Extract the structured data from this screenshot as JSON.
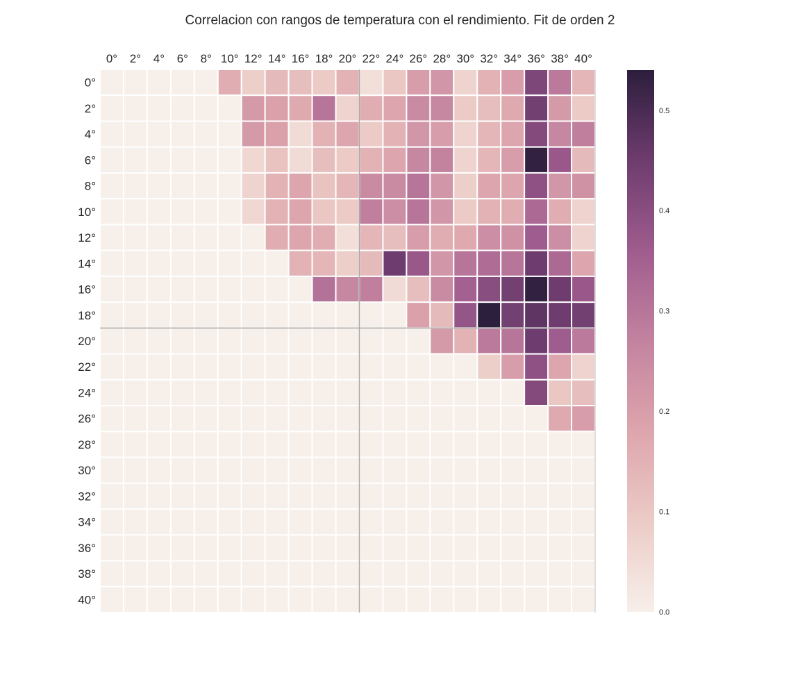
{
  "chart_data": {
    "type": "heatmap",
    "title": "Correlacion con rangos de temperatura con el rendimiento. Fit de orden 2",
    "x_labels": [
      "0°",
      "2°",
      "4°",
      "6°",
      "8°",
      "10°",
      "12°",
      "14°",
      "16°",
      "18°",
      "20°",
      "22°",
      "24°",
      "26°",
      "28°",
      "30°",
      "32°",
      "34°",
      "36°",
      "38°",
      "40°"
    ],
    "y_labels": [
      "0°",
      "2°",
      "4°",
      "6°",
      "8°",
      "10°",
      "12°",
      "14°",
      "16°",
      "18°",
      "20°",
      "22°",
      "24°",
      "26°",
      "28°",
      "30°",
      "32°",
      "34°",
      "36°",
      "38°",
      "40°"
    ],
    "values": [
      [
        0,
        0,
        0,
        0,
        0,
        0.16,
        0.08,
        0.13,
        0.12,
        0.09,
        0.15,
        0.04,
        0.1,
        0.2,
        0.22,
        0.07,
        0.15,
        0.2,
        0.42,
        0.29,
        0.14
      ],
      [
        0,
        0,
        0,
        0,
        0,
        0,
        0.21,
        0.19,
        0.17,
        0.3,
        0.07,
        0.16,
        0.18,
        0.25,
        0.26,
        0.09,
        0.12,
        0.17,
        0.44,
        0.21,
        0.09
      ],
      [
        0,
        0,
        0,
        0,
        0,
        0,
        0.21,
        0.19,
        0.05,
        0.15,
        0.18,
        0.09,
        0.15,
        0.22,
        0.2,
        0.07,
        0.14,
        0.18,
        0.41,
        0.26,
        0.28
      ],
      [
        0,
        0,
        0,
        0,
        0,
        0,
        0.06,
        0.11,
        0.05,
        0.12,
        0.09,
        0.15,
        0.18,
        0.26,
        0.27,
        0.07,
        0.14,
        0.2,
        0.53,
        0.37,
        0.13
      ],
      [
        0,
        0,
        0,
        0,
        0,
        0,
        0.07,
        0.15,
        0.18,
        0.11,
        0.14,
        0.25,
        0.25,
        0.3,
        0.22,
        0.08,
        0.18,
        0.18,
        0.39,
        0.22,
        0.23
      ],
      [
        0,
        0,
        0,
        0,
        0,
        0,
        0.06,
        0.15,
        0.18,
        0.1,
        0.09,
        0.28,
        0.24,
        0.3,
        0.22,
        0.09,
        0.15,
        0.16,
        0.33,
        0.16,
        0.07
      ],
      [
        0,
        0,
        0,
        0,
        0,
        0,
        0,
        0.16,
        0.18,
        0.16,
        0.04,
        0.14,
        0.12,
        0.2,
        0.16,
        0.17,
        0.24,
        0.23,
        0.36,
        0.24,
        0.07
      ],
      [
        0,
        0,
        0,
        0,
        0,
        0,
        0,
        0,
        0.15,
        0.14,
        0.08,
        0.13,
        0.45,
        0.37,
        0.22,
        0.3,
        0.32,
        0.3,
        0.45,
        0.33,
        0.18
      ],
      [
        0,
        0,
        0,
        0,
        0,
        0,
        0,
        0,
        0,
        0.31,
        0.26,
        0.28,
        0.05,
        0.12,
        0.25,
        0.35,
        0.4,
        0.44,
        0.53,
        0.45,
        0.37
      ],
      [
        0,
        0,
        0,
        0,
        0,
        0,
        0,
        0,
        0,
        0,
        0,
        0,
        0,
        0.19,
        0.13,
        0.38,
        0.54,
        0.44,
        0.47,
        0.45,
        0.44
      ],
      [
        0,
        0,
        0,
        0,
        0,
        0,
        0,
        0,
        0,
        0,
        0,
        0,
        0,
        0,
        0.21,
        0.15,
        0.29,
        0.3,
        0.45,
        0.36,
        0.29
      ],
      [
        0,
        0,
        0,
        0,
        0,
        0,
        0,
        0,
        0,
        0,
        0,
        0,
        0,
        0,
        0,
        0,
        0.08,
        0.2,
        0.39,
        0.18,
        0.07
      ],
      [
        0,
        0,
        0,
        0,
        0,
        0,
        0,
        0,
        0,
        0,
        0,
        0,
        0,
        0,
        0,
        0,
        0,
        0,
        0.41,
        0.1,
        0.12
      ],
      [
        0,
        0,
        0,
        0,
        0,
        0,
        0,
        0,
        0,
        0,
        0,
        0,
        0,
        0,
        0,
        0,
        0,
        0,
        0,
        0.17,
        0.2
      ],
      [
        0,
        0,
        0,
        0,
        0,
        0,
        0,
        0,
        0,
        0,
        0,
        0,
        0,
        0,
        0,
        0,
        0,
        0,
        0,
        0,
        0
      ],
      [
        0,
        0,
        0,
        0,
        0,
        0,
        0,
        0,
        0,
        0,
        0,
        0,
        0,
        0,
        0,
        0,
        0,
        0,
        0,
        0,
        0
      ],
      [
        0,
        0,
        0,
        0,
        0,
        0,
        0,
        0,
        0,
        0,
        0,
        0,
        0,
        0,
        0,
        0,
        0,
        0,
        0,
        0,
        0
      ],
      [
        0,
        0,
        0,
        0,
        0,
        0,
        0,
        0,
        0,
        0,
        0,
        0,
        0,
        0,
        0,
        0,
        0,
        0,
        0,
        0,
        0
      ],
      [
        0,
        0,
        0,
        0,
        0,
        0,
        0,
        0,
        0,
        0,
        0,
        0,
        0,
        0,
        0,
        0,
        0,
        0,
        0,
        0,
        0
      ],
      [
        0,
        0,
        0,
        0,
        0,
        0,
        0,
        0,
        0,
        0,
        0,
        0,
        0,
        0,
        0,
        0,
        0,
        0,
        0,
        0,
        0
      ],
      [
        0,
        0,
        0,
        0,
        0,
        0,
        0,
        0,
        0,
        0,
        0,
        0,
        0,
        0,
        0,
        0,
        0,
        0,
        0,
        0,
        0
      ]
    ],
    "colorbar": {
      "min": 0.0,
      "max": 0.54,
      "ticks": [
        0.0,
        0.1,
        0.2,
        0.3,
        0.4,
        0.5
      ],
      "tick_labels": [
        "0.0",
        "0.1",
        "0.2",
        "0.3",
        "0.4",
        "0.5"
      ]
    },
    "colors": [
      "#f7efea",
      "#eccbc6",
      "#dda5ad",
      "#c3839f",
      "#9f5c8e",
      "#6e3c6e",
      "#2c1e3d"
    ],
    "reference_lines": {
      "x": "22°",
      "y": "20°"
    },
    "x_axis_position": "top",
    "grid": false
  }
}
